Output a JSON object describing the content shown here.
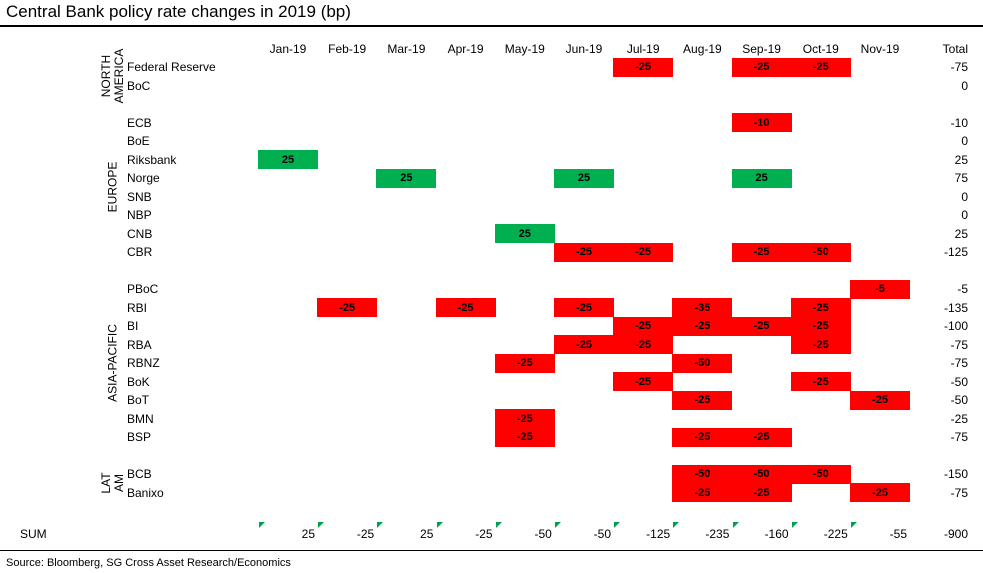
{
  "title": "Central Bank policy rate changes in 2019 (bp)",
  "source": "Source: Bloomberg, SG Cross Asset Research/Economics",
  "colors": {
    "cut": "#ff0000",
    "hike": "#00b050",
    "indicator": "#00a050"
  },
  "chart_data": {
    "type": "table",
    "months": [
      "Jan-19",
      "Feb-19",
      "Mar-19",
      "Apr-19",
      "May-19",
      "Jun-19",
      "Jul-19",
      "Aug-19",
      "Sep-19",
      "Oct-19",
      "Nov-19"
    ],
    "total_label": "Total",
    "sum_label": "SUM",
    "regions": [
      {
        "name": "NORTH AMERICA",
        "lines": [
          "NORTH",
          "AMERICA"
        ],
        "banks": [
          {
            "name": "Federal Reserve",
            "values": [
              null,
              null,
              null,
              null,
              null,
              null,
              -25,
              null,
              -25,
              -25,
              null
            ],
            "total": "-75"
          },
          {
            "name": "BoC",
            "values": [
              null,
              null,
              null,
              null,
              null,
              null,
              null,
              null,
              null,
              null,
              null
            ],
            "total": "0"
          }
        ]
      },
      {
        "name": "EUROPE",
        "lines": [
          "EUROPE"
        ],
        "banks": [
          {
            "name": "ECB",
            "values": [
              null,
              null,
              null,
              null,
              null,
              null,
              null,
              null,
              -10,
              null,
              null
            ],
            "total": "-10"
          },
          {
            "name": "BoE",
            "values": [
              null,
              null,
              null,
              null,
              null,
              null,
              null,
              null,
              null,
              null,
              null
            ],
            "total": "0"
          },
          {
            "name": "Riksbank",
            "values": [
              25,
              null,
              null,
              null,
              null,
              null,
              null,
              null,
              null,
              null,
              null
            ],
            "total": "25"
          },
          {
            "name": "Norge",
            "values": [
              null,
              null,
              25,
              null,
              null,
              25,
              null,
              null,
              25,
              null,
              null
            ],
            "total": "75"
          },
          {
            "name": "SNB",
            "values": [
              null,
              null,
              null,
              null,
              null,
              null,
              null,
              null,
              null,
              null,
              null
            ],
            "total": "0"
          },
          {
            "name": "NBP",
            "values": [
              null,
              null,
              null,
              null,
              null,
              null,
              null,
              null,
              null,
              null,
              null
            ],
            "total": "0"
          },
          {
            "name": "CNB",
            "values": [
              null,
              null,
              null,
              null,
              25,
              null,
              null,
              null,
              null,
              null,
              null
            ],
            "total": "25"
          },
          {
            "name": "CBR",
            "values": [
              null,
              null,
              null,
              null,
              null,
              -25,
              -25,
              null,
              -25,
              -50,
              null
            ],
            "total": "-125"
          }
        ]
      },
      {
        "name": "ASIA-PACIFIC",
        "lines": [
          "ASIA-PACIFIC"
        ],
        "banks": [
          {
            "name": "PBoC",
            "values": [
              null,
              null,
              null,
              null,
              null,
              null,
              null,
              null,
              null,
              null,
              -5
            ],
            "total": "-5"
          },
          {
            "name": "RBI",
            "values": [
              null,
              -25,
              null,
              -25,
              null,
              -25,
              null,
              -35,
              null,
              -25,
              null
            ],
            "total": "-135"
          },
          {
            "name": "BI",
            "values": [
              null,
              null,
              null,
              null,
              null,
              null,
              -25,
              -25,
              -25,
              -25,
              null
            ],
            "total": "-100"
          },
          {
            "name": "RBA",
            "values": [
              null,
              null,
              null,
              null,
              null,
              -25,
              -25,
              null,
              null,
              -25,
              null
            ],
            "total": "-75"
          },
          {
            "name": "RBNZ",
            "values": [
              null,
              null,
              null,
              null,
              -25,
              null,
              null,
              -50,
              null,
              null,
              null
            ],
            "total": "-75"
          },
          {
            "name": "BoK",
            "values": [
              null,
              null,
              null,
              null,
              null,
              null,
              -25,
              null,
              null,
              -25,
              null
            ],
            "total": "-50"
          },
          {
            "name": "BoT",
            "values": [
              null,
              null,
              null,
              null,
              null,
              null,
              null,
              -25,
              null,
              null,
              -25
            ],
            "total": "-50"
          },
          {
            "name": "BMN",
            "values": [
              null,
              null,
              null,
              null,
              -25,
              null,
              null,
              null,
              null,
              null,
              null
            ],
            "total": "-25"
          },
          {
            "name": "BSP",
            "values": [
              null,
              null,
              null,
              null,
              -25,
              null,
              null,
              -25,
              -25,
              null,
              null
            ],
            "total": "-75"
          }
        ]
      },
      {
        "name": "LAT AM",
        "lines": [
          "LAT",
          "AM"
        ],
        "banks": [
          {
            "name": "BCB",
            "values": [
              null,
              null,
              null,
              null,
              null,
              null,
              null,
              -50,
              -50,
              -50,
              null
            ],
            "total": "-150"
          },
          {
            "name": "Banixo",
            "values": [
              null,
              null,
              null,
              null,
              null,
              null,
              null,
              -25,
              -25,
              null,
              -25
            ],
            "total": "-75"
          }
        ]
      }
    ],
    "sums": [
      "25",
      "-25",
      "25",
      "-25",
      "-50",
      "-50",
      "-125",
      "-235",
      "-160",
      "-225",
      "-55"
    ],
    "sum_total": "-900"
  }
}
